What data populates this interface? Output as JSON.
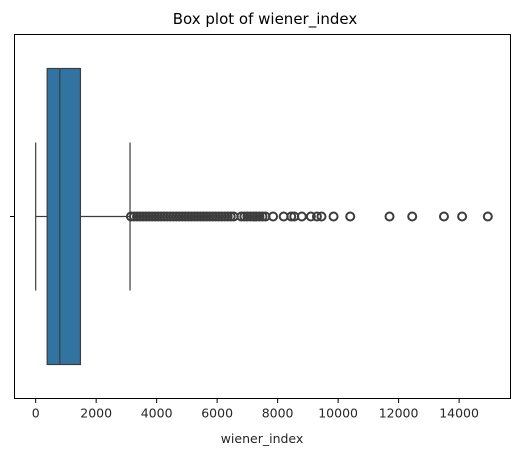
{
  "chart_data": {
    "type": "box",
    "title": "Box plot of wiener_index",
    "xlabel": "wiener_index",
    "ylabel": "",
    "orientation": "horizontal",
    "xlim": [
      -700,
      15700
    ],
    "x_ticks": [
      0,
      2000,
      4000,
      6000,
      8000,
      10000,
      12000,
      14000
    ],
    "x_tick_labels": [
      "0",
      "2000",
      "4000",
      "6000",
      "8000",
      "10000",
      "12000",
      "14000"
    ],
    "grid": false,
    "legend": "none",
    "box": {
      "whisker_low": 0,
      "q1": 380,
      "median": 800,
      "q3": 1480,
      "whisker_high": 3120
    },
    "outliers": [
      3150,
      3250,
      3350,
      3450,
      3550,
      3650,
      3750,
      3850,
      3950,
      4050,
      4150,
      4250,
      4350,
      4450,
      4550,
      4650,
      4750,
      4850,
      4950,
      5050,
      5150,
      5250,
      5350,
      5450,
      5550,
      5650,
      5750,
      5850,
      5950,
      6050,
      6150,
      6250,
      6350,
      6450,
      6550,
      6800,
      6900,
      7000,
      7100,
      7200,
      7300,
      7400,
      7500,
      7600,
      7850,
      8200,
      8450,
      8550,
      8800,
      9100,
      9300,
      9450,
      9850,
      10400,
      11700,
      12450,
      13500,
      14100,
      14950
    ],
    "colors": {
      "box_fill": "#3274a1",
      "lines": "#3d3d3d",
      "outlier_edge": "#3d3d3d"
    }
  }
}
